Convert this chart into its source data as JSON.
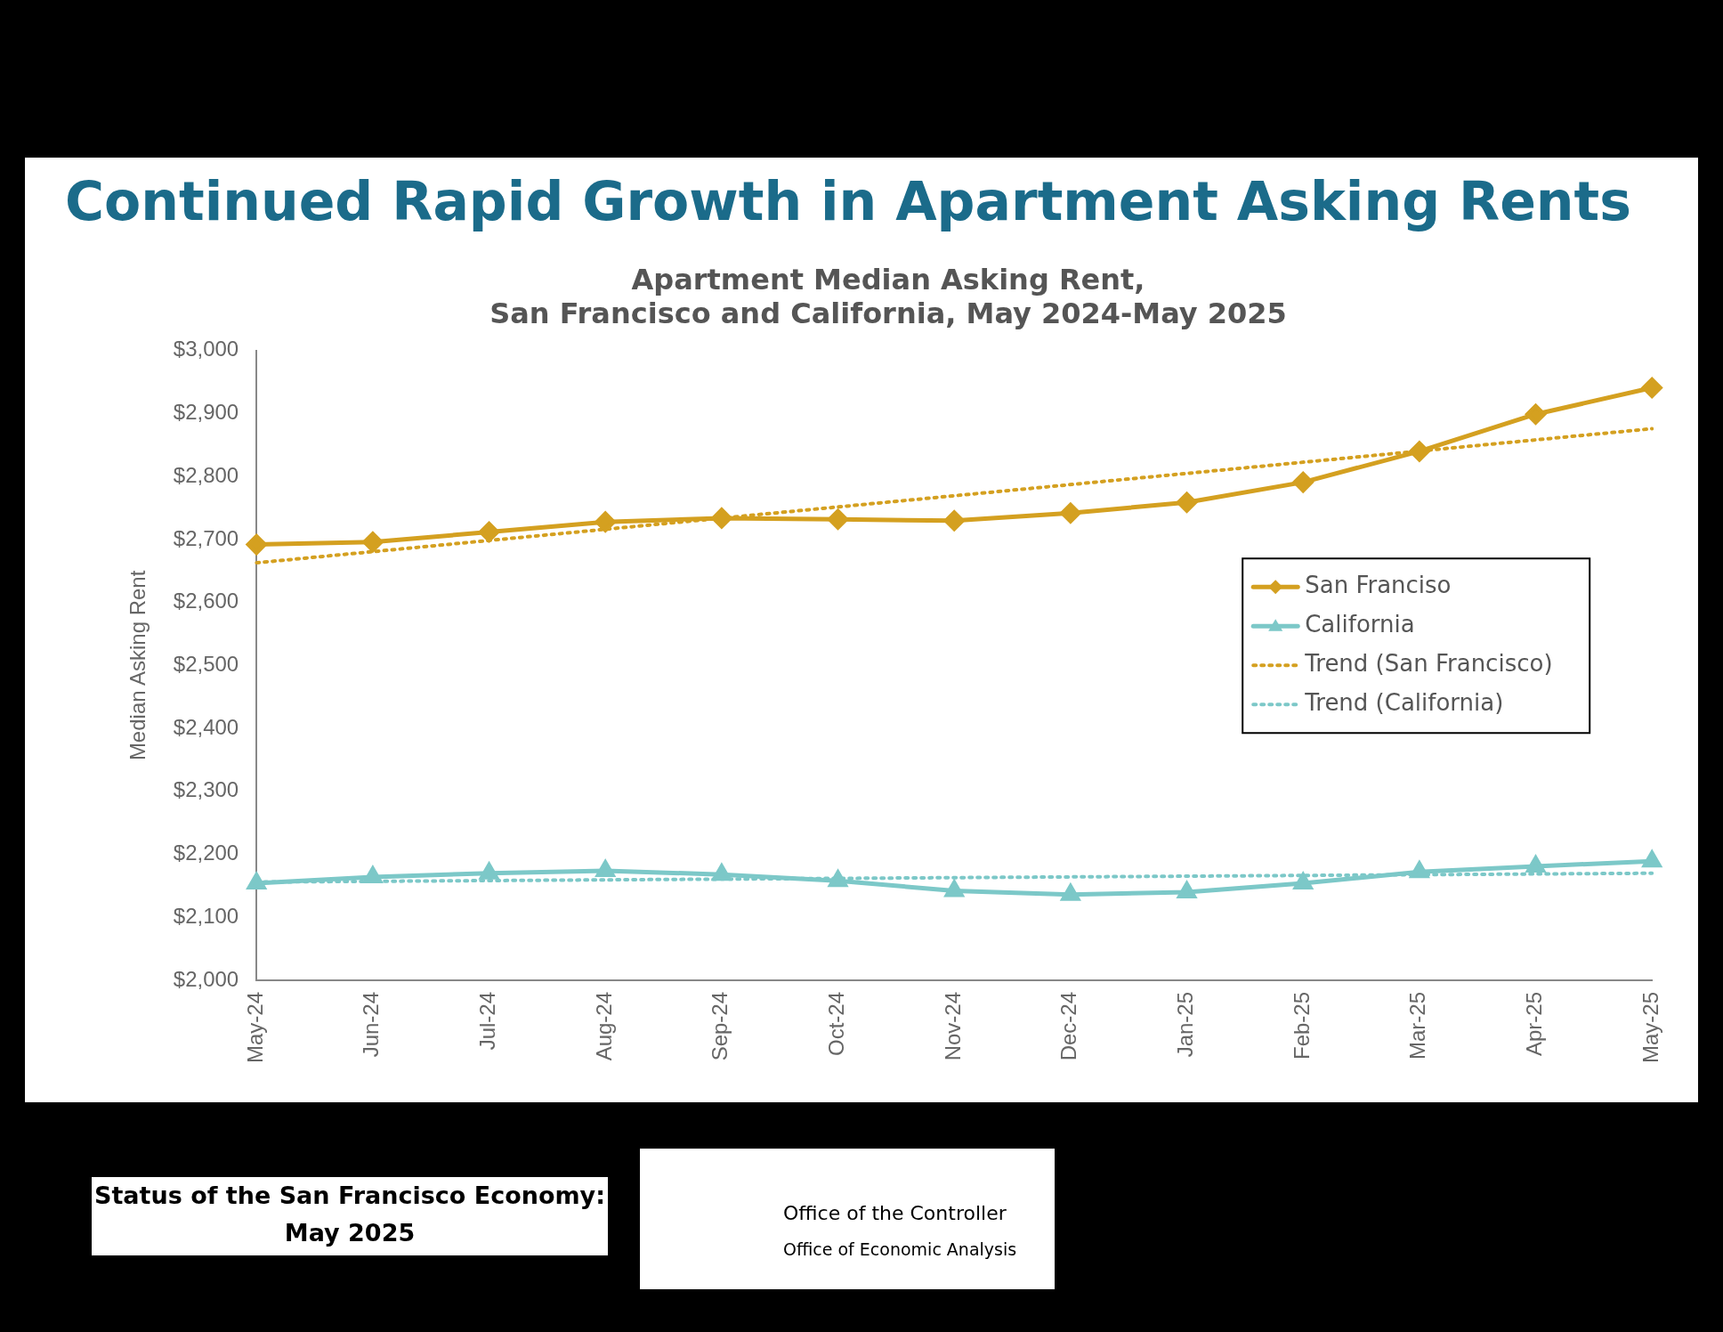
{
  "chart_data": {
    "type": "line",
    "title": "Continued Rapid Growth in Apartment Asking Rents",
    "subtitle": "Apartment Median Asking Rent,\nSan Francisco and California, May 2024-May 2025",
    "ylabel": "Median Asking Rent",
    "categories": [
      "May-24",
      "Jun-24",
      "Jul-24",
      "Aug-24",
      "Sep-24",
      "Oct-24",
      "Nov-24",
      "Dec-24",
      "Jan-25",
      "Feb-25",
      "Mar-25",
      "Apr-25",
      "May-25"
    ],
    "series": [
      {
        "name": "San Franciso",
        "color": "#d4a020",
        "marker": "diamond",
        "line_style": "solid",
        "values": [
          2692,
          2696,
          2712,
          2728,
          2734,
          2732,
          2730,
          2742,
          2759,
          2791,
          2840,
          2899,
          2941
        ]
      },
      {
        "name": "California",
        "color": "#7cc8c8",
        "marker": "triangle",
        "line_style": "solid",
        "values": [
          2154,
          2164,
          2170,
          2174,
          2168,
          2158,
          2142,
          2136,
          2140,
          2154,
          2172,
          2181,
          2189
        ]
      },
      {
        "name": "Trend (San Francisco)",
        "color": "#d4a020",
        "marker": "none",
        "line_style": "dotted",
        "values": [
          2663,
          null,
          null,
          null,
          null,
          null,
          null,
          null,
          null,
          null,
          null,
          null,
          2876
        ]
      },
      {
        "name": "Trend (California)",
        "color": "#7cc8c8",
        "marker": "none",
        "line_style": "dotted",
        "values": [
          2156,
          null,
          null,
          null,
          null,
          null,
          null,
          null,
          null,
          null,
          null,
          null,
          2170
        ]
      }
    ],
    "ylim": [
      2000,
      3000
    ],
    "yticks": [
      {
        "value": 2000,
        "label": "$2,000"
      },
      {
        "value": 2100,
        "label": "$2,100"
      },
      {
        "value": 2200,
        "label": "$2,200"
      },
      {
        "value": 2300,
        "label": "$2,300"
      },
      {
        "value": 2400,
        "label": "$2,400"
      },
      {
        "value": 2500,
        "label": "$2,500"
      },
      {
        "value": 2600,
        "label": "$2,600"
      },
      {
        "value": 2700,
        "label": "$2,700"
      },
      {
        "value": 2800,
        "label": "$2,800"
      },
      {
        "value": 2900,
        "label": "$2,900"
      },
      {
        "value": 3000,
        "label": "$3,000"
      }
    ],
    "grid": false,
    "legend": "right",
    "annotations": [
      "Status of the San Francisco Economy:\nMay 2025",
      "Office of the Controller",
      "Office of Economic Analysis"
    ]
  }
}
